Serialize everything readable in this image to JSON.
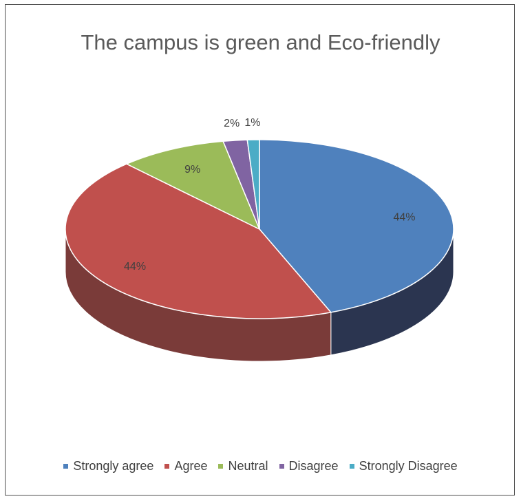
{
  "chart_data": {
    "type": "pie",
    "title": "The campus is green and Eco-friendly",
    "categories": [
      "Strongly agree",
      "Agree",
      "Neutral",
      "Disagree",
      "Strongly Disagree"
    ],
    "values": [
      44,
      44,
      9,
      2,
      1
    ],
    "labels": [
      "44%",
      "44%",
      "9%",
      "2%",
      "1%"
    ],
    "colors": [
      "#4f81bd",
      "#c0504d",
      "#9bbb59",
      "#8064a2",
      "#4bacc6"
    ],
    "side_colors": [
      "#2b3550",
      "#7a3b39",
      "#5f7036",
      "#4c3d62",
      "#2c6777"
    ],
    "style": "3d",
    "legend_position": "bottom"
  }
}
